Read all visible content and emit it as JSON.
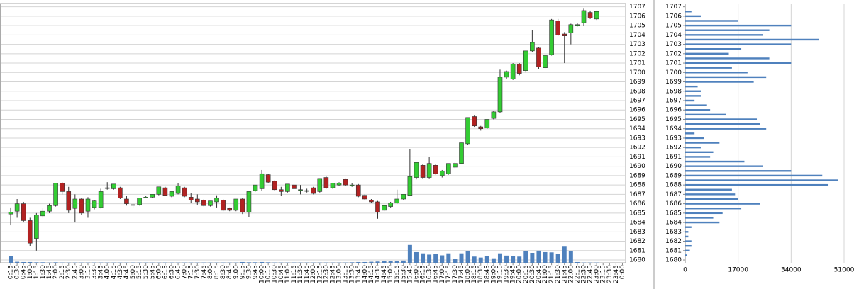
{
  "chart_data": [
    {
      "type": "candlestick",
      "categories": [
        "0:15",
        "0:30",
        "0:45",
        "1:00",
        "1:15",
        "1:30",
        "1:45",
        "2:00",
        "2:15",
        "2:30",
        "2:45",
        "3:00",
        "3:15",
        "3:30",
        "3:45",
        "4:00",
        "4:15",
        "4:30",
        "4:45",
        "5:00",
        "5:15",
        "5:30",
        "5:45",
        "6:00",
        "6:15",
        "6:30",
        "6:45",
        "7:00",
        "7:15",
        "7:30",
        "7:45",
        "8:00",
        "8:15",
        "8:30",
        "8:45",
        "9:00",
        "9:15",
        "9:30",
        "9:45",
        "10:00",
        "10:15",
        "10:30",
        "10:45",
        "11:00",
        "11:15",
        "11:30",
        "11:45",
        "12:00",
        "12:15",
        "12:30",
        "12:45",
        "13:00",
        "13:15",
        "13:30",
        "13:45",
        "14:00",
        "14:15",
        "14:30",
        "14:45",
        "15:00",
        "15:15",
        "15:30",
        "15:45",
        "16:00",
        "16:15",
        "16:30",
        "16:45",
        "17:00",
        "17:15",
        "17:30",
        "17:45",
        "18:00",
        "18:15",
        "18:30",
        "18:45",
        "19:00",
        "19:15",
        "19:30",
        "19:45",
        "20:00",
        "20:15",
        "20:30",
        "20:45",
        "21:00",
        "21:15",
        "21:30",
        "21:45",
        "22:00",
        "22:15",
        "22:30",
        "22:45",
        "23:00",
        "23:15",
        "23:30",
        "23:45",
        "0:00"
      ],
      "open": [
        1684.9,
        1685.2,
        1686.0,
        1684.2,
        1682.3,
        1684.7,
        1685.2,
        1685.8,
        1688.2,
        1687.3,
        1685.5,
        1686.5,
        1685.2,
        1685.6,
        1685.6,
        1687.7,
        1687.6,
        1687.7,
        1686.5,
        1685.9,
        1685.9,
        1686.7,
        1686.7,
        1687.0,
        1687.7,
        1686.8,
        1687.1,
        1687.7,
        1686.7,
        1686.5,
        1686.4,
        1685.8,
        1686.2,
        1686.4,
        1685.5,
        1685.3,
        1686.5,
        1685.1,
        1687.4,
        1687.6,
        1689.1,
        1688.4,
        1687.5,
        1687.3,
        1688.0,
        1687.5,
        1687.4,
        1687.7,
        1687.3,
        1688.8,
        1687.7,
        1688.0,
        1688.6,
        1688.0,
        1688.0,
        1686.9,
        1686.4,
        1686.2,
        1685.3,
        1685.7,
        1686.1,
        1686.5,
        1686.9,
        1688.8,
        1690.1,
        1688.8,
        1690.1,
        1689.0,
        1689.2,
        1689.9,
        1690.3,
        1692.4,
        1695.3,
        1694.2,
        1694.1,
        1695.1,
        1695.8,
        1699.5,
        1699.3,
        1700.9,
        1700.2,
        1702.3,
        1702.6,
        1700.5,
        1701.9,
        1705.5,
        1704.1,
        1704.2,
        1705.1,
        1705.3,
        1706.4,
        1705.7,
        null,
        null,
        null,
        null
      ],
      "high": [
        1685.6,
        1686.5,
        1686.2,
        1684.5,
        1685.0,
        1685.5,
        1686.0,
        1688.2,
        1688.3,
        1687.8,
        1687.0,
        1686.6,
        1686.7,
        1686.4,
        1687.6,
        1688.3,
        1688.1,
        1687.8,
        1686.8,
        1686.1,
        1686.6,
        1686.8,
        1687.0,
        1687.8,
        1687.8,
        1687.3,
        1688.2,
        1687.8,
        1687.1,
        1687.0,
        1686.5,
        1686.3,
        1686.9,
        1686.5,
        1685.6,
        1686.5,
        1686.6,
        1687.3,
        1688.0,
        1689.6,
        1689.2,
        1688.5,
        1687.8,
        1688.1,
        1688.1,
        1688.0,
        1687.6,
        1687.8,
        1688.7,
        1688.9,
        1688.2,
        1688.3,
        1688.7,
        1688.2,
        1688.1,
        1687.0,
        1686.5,
        1686.3,
        1685.9,
        1686.2,
        1687.5,
        1687.0,
        1691.8,
        1690.4,
        1690.2,
        1691.0,
        1690.2,
        1689.6,
        1690.3,
        1690.4,
        1692.5,
        1695.2,
        1695.4,
        1694.3,
        1695.0,
        1695.9,
        1700.3,
        1700.2,
        1701.0,
        1701.0,
        1702.3,
        1704.5,
        1702.7,
        1701.9,
        1705.7,
        1705.7,
        1704.3,
        1705.2,
        1705.3,
        1706.8,
        1706.6,
        1706.6,
        null,
        null,
        null,
        null
      ],
      "low": [
        1683.7,
        1684.5,
        1684.0,
        1681.5,
        1681.0,
        1684.5,
        1685.0,
        1685.7,
        1687.0,
        1685.0,
        1684.0,
        1684.8,
        1684.5,
        1685.4,
        1685.5,
        1687.5,
        1687.5,
        1686.5,
        1685.8,
        1685.5,
        1685.8,
        1686.6,
        1686.6,
        1686.9,
        1686.8,
        1686.7,
        1687.0,
        1686.7,
        1686.1,
        1685.9,
        1685.7,
        1685.7,
        1685.6,
        1685.2,
        1685.2,
        1685.2,
        1684.9,
        1684.6,
        1687.3,
        1687.4,
        1688.2,
        1687.4,
        1686.8,
        1687.2,
        1687.5,
        1687.0,
        1687.2,
        1687.0,
        1687.2,
        1687.6,
        1687.6,
        1687.9,
        1687.9,
        1687.8,
        1686.7,
        1686.4,
        1686.1,
        1684.4,
        1685.2,
        1685.6,
        1686.0,
        1686.4,
        1686.8,
        1688.6,
        1688.7,
        1688.7,
        1689.1,
        1688.8,
        1689.1,
        1689.8,
        1690.2,
        1692.3,
        1694.2,
        1693.8,
        1694.0,
        1695.0,
        1695.7,
        1699.3,
        1699.2,
        1699.7,
        1700.0,
        1702.2,
        1700.4,
        1700.3,
        1701.8,
        1703.9,
        1701.0,
        1703.0,
        1704.9,
        1705.0,
        1705.7,
        1705.6,
        null,
        null,
        null,
        null
      ],
      "close": [
        1685.1,
        1686.0,
        1684.2,
        1681.8,
        1684.8,
        1685.2,
        1685.8,
        1688.2,
        1687.3,
        1685.3,
        1686.5,
        1685.0,
        1686.5,
        1686.3,
        1687.3,
        1687.7,
        1688.1,
        1686.6,
        1686.0,
        1685.9,
        1686.6,
        1686.7,
        1687.0,
        1687.8,
        1686.9,
        1687.3,
        1687.9,
        1686.8,
        1686.4,
        1686.2,
        1685.8,
        1686.3,
        1686.6,
        1685.3,
        1685.3,
        1686.5,
        1685.1,
        1687.3,
        1688.0,
        1689.2,
        1688.3,
        1687.5,
        1687.3,
        1688.1,
        1687.6,
        1687.5,
        1687.4,
        1687.1,
        1688.7,
        1687.7,
        1688.2,
        1688.2,
        1688.0,
        1688.0,
        1686.8,
        1686.5,
        1686.2,
        1685.1,
        1685.8,
        1686.1,
        1686.5,
        1687.0,
        1688.9,
        1690.4,
        1688.8,
        1690.3,
        1689.2,
        1689.5,
        1690.3,
        1690.3,
        1692.5,
        1695.2,
        1694.3,
        1694.0,
        1695.0,
        1695.8,
        1699.5,
        1700.1,
        1700.9,
        1699.9,
        1702.3,
        1703.2,
        1700.6,
        1701.8,
        1705.6,
        1704.0,
        1703.9,
        1705.1,
        1705.1,
        1706.6,
        1705.8,
        1706.5,
        null,
        null,
        null,
        null
      ],
      "volume": [
        260,
        40,
        30,
        30,
        20,
        20,
        10,
        20,
        10,
        10,
        10,
        10,
        10,
        10,
        10,
        10,
        10,
        10,
        10,
        10,
        10,
        10,
        10,
        10,
        10,
        10,
        10,
        10,
        10,
        10,
        10,
        10,
        10,
        10,
        10,
        10,
        30,
        20,
        20,
        30,
        20,
        10,
        10,
        10,
        10,
        10,
        10,
        10,
        10,
        10,
        10,
        10,
        10,
        20,
        30,
        30,
        40,
        50,
        60,
        70,
        80,
        90,
        720,
        430,
        380,
        330,
        360,
        300,
        380,
        150,
        380,
        470,
        250,
        210,
        280,
        180,
        380,
        290,
        260,
        250,
        480,
        400,
        490,
        430,
        420,
        360,
        650,
        470,
        30,
        10,
        10,
        10,
        null,
        null,
        null,
        null
      ],
      "up_color": "#33cc33",
      "down_color": "#b22222",
      "volume_color": "#4f81bd",
      "ylim": [
        1679.7,
        1707.35
      ],
      "yticks": [
        1680,
        1681,
        1682,
        1683,
        1684,
        1685,
        1686,
        1687,
        1688,
        1689,
        1690,
        1691,
        1692,
        1693,
        1694,
        1695,
        1696,
        1697,
        1698,
        1699,
        1700,
        1701,
        1702,
        1703,
        1704,
        1705,
        1706,
        1707
      ],
      "grid": true
    },
    {
      "type": "volume-profile",
      "prices": [
        1680.5,
        1681,
        1681.5,
        1682,
        1682.5,
        1683,
        1683.5,
        1684,
        1684.5,
        1685,
        1685.5,
        1686,
        1686.5,
        1687,
        1687.5,
        1688,
        1688.5,
        1689,
        1689.5,
        1690,
        1690.5,
        1691,
        1691.5,
        1692,
        1692.5,
        1693,
        1693.5,
        1694,
        1694.5,
        1695,
        1695.5,
        1696,
        1696.5,
        1697,
        1697.5,
        1698,
        1698.5,
        1699,
        1699.5,
        1700,
        1700.5,
        1701,
        1701.5,
        1702,
        1702.5,
        1703,
        1703.5,
        1704,
        1704.5,
        1705,
        1705.5,
        1706,
        1706.5
      ],
      "values": [
        500,
        1500,
        2000,
        2000,
        1000,
        1000,
        2000,
        11000,
        9000,
        12000,
        18000,
        24000,
        17000,
        16000,
        15000,
        46000,
        49000,
        44000,
        34000,
        25000,
        19000,
        8000,
        9000,
        5000,
        11000,
        6000,
        3000,
        26000,
        24000,
        23000,
        13000,
        8000,
        7000,
        3000,
        5000,
        5000,
        4000,
        22000,
        26000,
        20000,
        15000,
        34000,
        27000,
        14000,
        18000,
        34000,
        43000,
        25000,
        27000,
        34000,
        17000,
        5000,
        2000
      ],
      "color": "#4f81bd",
      "xlim": [
        0,
        51000
      ],
      "xticks": [
        0,
        17000,
        34000,
        51000
      ],
      "ylim": [
        1679.7,
        1707.35
      ],
      "yticks": [
        1680,
        1681,
        1682,
        1683,
        1684,
        1685,
        1686,
        1687,
        1688,
        1689,
        1690,
        1691,
        1692,
        1693,
        1694,
        1695,
        1696,
        1697,
        1698,
        1699,
        1700,
        1701,
        1702,
        1703,
        1704,
        1705,
        1706,
        1707
      ],
      "grid": true
    }
  ]
}
